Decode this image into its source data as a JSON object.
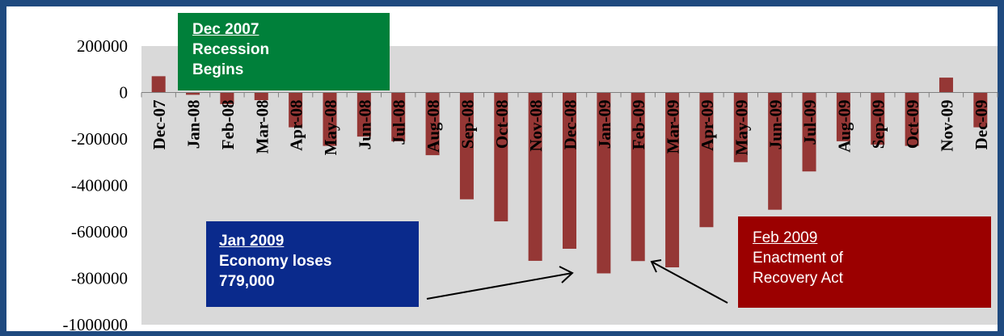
{
  "chart_data": {
    "type": "bar",
    "categories": [
      "Dec-07",
      "Jan-08",
      "Feb-08",
      "Mar-08",
      "Apr-08",
      "May-08",
      "Jun-08",
      "Jul-08",
      "Aug-08",
      "Sep-08",
      "Oct-08",
      "Nov-08",
      "Dec-08",
      "Jan-09",
      "Feb-09",
      "Mar-09",
      "Apr-09",
      "May-09",
      "Jun-09",
      "Jul-09",
      "Aug-09",
      "Sep-09",
      "Oct-09",
      "Nov-09",
      "Dec-09"
    ],
    "values": [
      70000,
      -10000,
      -50000,
      -33000,
      -150000,
      -230000,
      -190000,
      -210000,
      -270000,
      -460000,
      -555000,
      -725000,
      -673000,
      -779000,
      -726000,
      -753000,
      -580000,
      -300000,
      -505000,
      -340000,
      -210000,
      -225000,
      -230000,
      64000,
      -150000
    ],
    "ylim": [
      -1000000,
      200000
    ],
    "yticks": [
      "200000",
      "0",
      "-200000",
      "-400000",
      "-600000",
      "-800000",
      "-1000000"
    ],
    "bar_color": "#953735",
    "plot_bg": "#d9d9d9",
    "grid": false,
    "legend": "none"
  },
  "annotations": {
    "recession": {
      "title": "Dec 2007",
      "line1": "Recession",
      "line2": "Begins",
      "color": "#00803a"
    },
    "jan2009": {
      "title": "Jan 2009",
      "line1": "Economy loses",
      "line2": "779,000",
      "color": "#0a2a8c"
    },
    "feb2009": {
      "title": "Feb 2009",
      "line1": "Enactment of",
      "line2": "Recovery Act",
      "color": "#9b0000"
    }
  },
  "frame_color": "#1f4a7f"
}
